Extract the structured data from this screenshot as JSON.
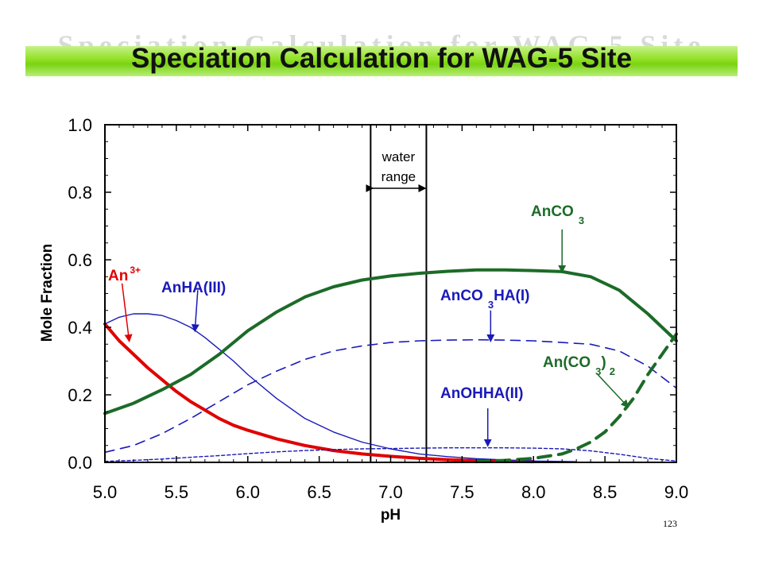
{
  "slide": {
    "title": "Speciation Calculation for WAG-5 Site",
    "ghost_title": "Speciation Calculation for WAG-5 Site",
    "page_number": "123",
    "title_band_color": "#8fe021"
  },
  "chart_data": {
    "type": "line",
    "title": "",
    "xlabel": "pH",
    "ylabel": "Mole Fraction",
    "xlim": [
      5.0,
      9.0
    ],
    "ylim": [
      0.0,
      1.0
    ],
    "xticks": [
      "5.0",
      "5.5",
      "6.0",
      "6.5",
      "7.0",
      "7.5",
      "8.0",
      "8.5",
      "9.0"
    ],
    "yticks": [
      "0.0",
      "0.2",
      "0.4",
      "0.6",
      "0.8",
      "1.0"
    ],
    "grid": false,
    "water_range": {
      "label_line1": "water",
      "label_line2": "range",
      "x_start": 6.86,
      "x_end": 7.25
    },
    "series": [
      {
        "name": "An3+",
        "color": "#e00000",
        "style": "solid-thick",
        "x": [
          5.0,
          5.1,
          5.2,
          5.3,
          5.4,
          5.5,
          5.6,
          5.7,
          5.8,
          5.9,
          6.0,
          6.2,
          6.4,
          6.6,
          6.8,
          7.0,
          7.2,
          7.4,
          7.6,
          7.8,
          8.0
        ],
        "y": [
          0.41,
          0.36,
          0.32,
          0.28,
          0.245,
          0.21,
          0.18,
          0.155,
          0.13,
          0.11,
          0.095,
          0.07,
          0.05,
          0.035,
          0.025,
          0.018,
          0.012,
          0.008,
          0.005,
          0.003,
          0.002
        ]
      },
      {
        "name": "AnHA(III)",
        "color": "#1a1ab8",
        "style": "solid-thin",
        "x": [
          5.0,
          5.1,
          5.2,
          5.3,
          5.4,
          5.5,
          5.6,
          5.7,
          5.8,
          5.9,
          6.0,
          6.2,
          6.4,
          6.6,
          6.8,
          7.0,
          7.2,
          7.4,
          7.6,
          7.8,
          8.0,
          8.3
        ],
        "y": [
          0.41,
          0.43,
          0.44,
          0.44,
          0.435,
          0.42,
          0.4,
          0.37,
          0.335,
          0.3,
          0.26,
          0.19,
          0.13,
          0.09,
          0.06,
          0.04,
          0.025,
          0.017,
          0.011,
          0.007,
          0.004,
          0.002
        ]
      },
      {
        "name": "AnCO3",
        "color": "#1c6b28",
        "style": "solid-thick",
        "x": [
          5.0,
          5.2,
          5.4,
          5.6,
          5.8,
          6.0,
          6.2,
          6.4,
          6.6,
          6.8,
          7.0,
          7.2,
          7.4,
          7.6,
          7.8,
          8.0,
          8.2,
          8.4,
          8.6,
          8.8,
          9.0
        ],
        "y": [
          0.145,
          0.175,
          0.215,
          0.26,
          0.32,
          0.39,
          0.445,
          0.49,
          0.52,
          0.54,
          0.552,
          0.56,
          0.566,
          0.57,
          0.57,
          0.568,
          0.565,
          0.55,
          0.51,
          0.44,
          0.36
        ]
      },
      {
        "name": "AnCO3HA(I)",
        "color": "#1a1ab8",
        "style": "dashed",
        "x": [
          5.0,
          5.2,
          5.4,
          5.6,
          5.8,
          6.0,
          6.2,
          6.4,
          6.6,
          6.8,
          7.0,
          7.2,
          7.4,
          7.6,
          7.8,
          8.0,
          8.2,
          8.4,
          8.6,
          8.8,
          9.0
        ],
        "y": [
          0.03,
          0.05,
          0.085,
          0.13,
          0.18,
          0.23,
          0.27,
          0.305,
          0.33,
          0.345,
          0.355,
          0.36,
          0.362,
          0.363,
          0.362,
          0.36,
          0.355,
          0.35,
          0.33,
          0.285,
          0.22
        ]
      },
      {
        "name": "An(CO3)2",
        "color": "#1c6b28",
        "style": "dashed-thick",
        "x": [
          7.6,
          7.8,
          8.0,
          8.2,
          8.3,
          8.4,
          8.5,
          8.6,
          8.7,
          8.8,
          8.9,
          9.0
        ],
        "y": [
          0.002,
          0.006,
          0.012,
          0.025,
          0.04,
          0.06,
          0.09,
          0.135,
          0.19,
          0.26,
          0.32,
          0.38
        ]
      },
      {
        "name": "AnOHHA(II)",
        "color": "#1a1ab8",
        "style": "dotted",
        "x": [
          5.0,
          5.2,
          5.4,
          5.6,
          5.8,
          6.0,
          6.2,
          6.4,
          6.6,
          6.8,
          7.0,
          7.2,
          7.4,
          7.6,
          7.8,
          8.0,
          8.2,
          8.4,
          8.6,
          8.8,
          9.0
        ],
        "y": [
          0.003,
          0.006,
          0.01,
          0.015,
          0.02,
          0.026,
          0.031,
          0.035,
          0.038,
          0.04,
          0.041,
          0.042,
          0.043,
          0.043,
          0.043,
          0.042,
          0.04,
          0.034,
          0.024,
          0.012,
          0.004
        ]
      }
    ],
    "annotations": [
      {
        "key": "an3",
        "text": "An",
        "sup": "3+",
        "color": "#e00000",
        "arrow_from": [
          5.12,
          0.53
        ],
        "arrow_to": [
          5.17,
          0.36
        ]
      },
      {
        "key": "anha",
        "text": "AnHA(III)",
        "color": "#1a1ab8",
        "arrow_from": [
          5.65,
          0.51
        ],
        "arrow_to": [
          5.63,
          0.39
        ]
      },
      {
        "key": "anco3",
        "text": "AnCO",
        "sub": "3",
        "color": "#1c6b28",
        "arrow_from": [
          8.2,
          0.69
        ],
        "arrow_to": [
          8.2,
          0.565
        ]
      },
      {
        "key": "anco3ha",
        "text": "AnCO",
        "sub": "3",
        "tail": "HA(I)",
        "color": "#1a1ab8",
        "arrow_from": [
          7.7,
          0.45
        ],
        "arrow_to": [
          7.7,
          0.36
        ]
      },
      {
        "key": "anco32",
        "text": "An(CO",
        "sub": "3",
        "tail": ")",
        "sub2": "2",
        "color": "#1c6b28",
        "arrow_from": [
          8.45,
          0.26
        ],
        "arrow_to": [
          8.66,
          0.165
        ]
      },
      {
        "key": "anohha",
        "text": "AnOHHA(II)",
        "color": "#1a1ab8",
        "arrow_from": [
          7.68,
          0.16
        ],
        "arrow_to": [
          7.68,
          0.05
        ]
      }
    ]
  }
}
